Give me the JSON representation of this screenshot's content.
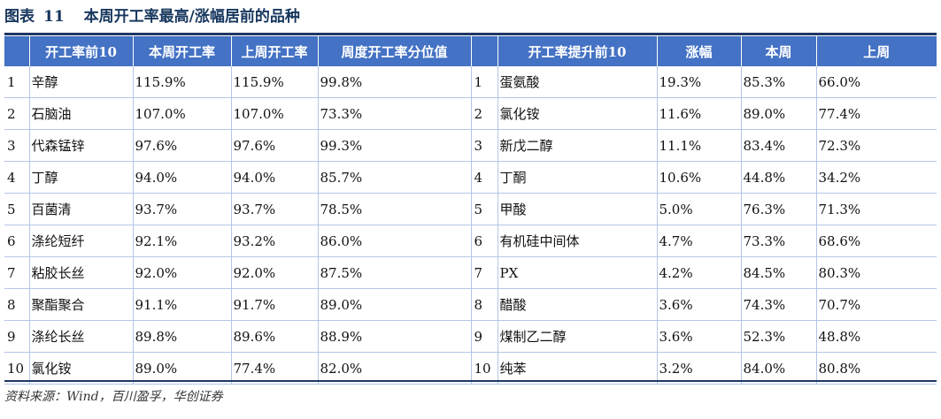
{
  "caption": {
    "label": "图表",
    "number": "11",
    "title": "本周开工率最高/涨幅居前的品种"
  },
  "left_table": {
    "headers": [
      "",
      "开工率前10",
      "本周开工率",
      "上周开工率",
      "周度开工率分位值"
    ],
    "rows": [
      {
        "rank": "1",
        "name": "辛醇",
        "this_week": "115.9%",
        "last_week": "115.9%",
        "percentile": "99.8%"
      },
      {
        "rank": "2",
        "name": "石脑油",
        "this_week": "107.0%",
        "last_week": "107.0%",
        "percentile": "73.3%"
      },
      {
        "rank": "3",
        "name": "代森锰锌",
        "this_week": "97.6%",
        "last_week": "97.6%",
        "percentile": "99.3%"
      },
      {
        "rank": "4",
        "name": "丁醇",
        "this_week": "94.0%",
        "last_week": "94.0%",
        "percentile": "85.7%"
      },
      {
        "rank": "5",
        "name": "百菌清",
        "this_week": "93.7%",
        "last_week": "93.7%",
        "percentile": "78.5%"
      },
      {
        "rank": "6",
        "name": "涤纶短纤",
        "this_week": "92.1%",
        "last_week": "93.2%",
        "percentile": "86.0%"
      },
      {
        "rank": "7",
        "name": "粘胶长丝",
        "this_week": "92.0%",
        "last_week": "92.0%",
        "percentile": "87.5%"
      },
      {
        "rank": "8",
        "name": "聚酯聚合",
        "this_week": "91.1%",
        "last_week": "91.7%",
        "percentile": "89.0%"
      },
      {
        "rank": "9",
        "name": "涤纶长丝",
        "this_week": "89.8%",
        "last_week": "89.6%",
        "percentile": "88.9%"
      },
      {
        "rank": "10",
        "name": "氯化铵",
        "this_week": "89.0%",
        "last_week": "77.4%",
        "percentile": "82.0%"
      }
    ]
  },
  "right_table": {
    "headers": [
      "",
      "开工率提升前10",
      "涨幅",
      "本周",
      "上周"
    ],
    "rows": [
      {
        "rank": "1",
        "name": "蛋氨酸",
        "change": "19.3%",
        "this_week": "85.3%",
        "last_week": "66.0%"
      },
      {
        "rank": "2",
        "name": "氯化铵",
        "change": "11.6%",
        "this_week": "89.0%",
        "last_week": "77.4%"
      },
      {
        "rank": "3",
        "name": "新戊二醇",
        "change": "11.1%",
        "this_week": "83.4%",
        "last_week": "72.3%"
      },
      {
        "rank": "4",
        "name": "丁酮",
        "change": "10.6%",
        "this_week": "44.8%",
        "last_week": "34.2%"
      },
      {
        "rank": "5",
        "name": "甲酸",
        "change": "5.0%",
        "this_week": "76.3%",
        "last_week": "71.3%"
      },
      {
        "rank": "6",
        "name": "有机硅中间体",
        "change": "4.7%",
        "this_week": "73.3%",
        "last_week": "68.6%"
      },
      {
        "rank": "7",
        "name": "PX",
        "change": "4.2%",
        "this_week": "84.5%",
        "last_week": "80.3%"
      },
      {
        "rank": "8",
        "name": "醋酸",
        "change": "3.6%",
        "this_week": "74.3%",
        "last_week": "70.7%"
      },
      {
        "rank": "9",
        "name": "煤制乙二醇",
        "change": "3.6%",
        "this_week": "52.3%",
        "last_week": "48.8%"
      },
      {
        "rank": "10",
        "name": "纯苯",
        "change": "3.2%",
        "this_week": "84.0%",
        "last_week": "80.8%"
      }
    ]
  },
  "source": "资料来源：Wind，百川盈孚，华创证券",
  "colors": {
    "header_bg": "#4472C4",
    "caption_text": "#17375E",
    "rule": "#1F3864",
    "grid": "#B4C6E7"
  }
}
